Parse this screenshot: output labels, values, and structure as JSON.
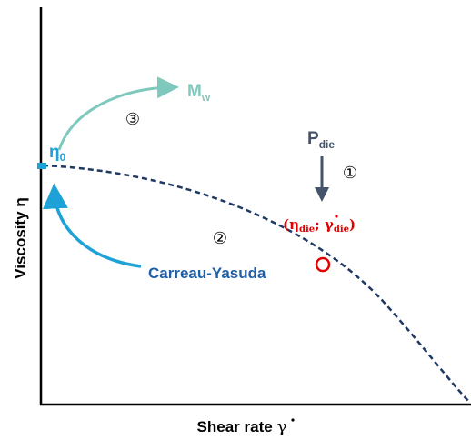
{
  "axes": {
    "x_label": "Shear rate",
    "x_symbol": "γ",
    "y_label": "Viscosity η"
  },
  "labels": {
    "eta": "η",
    "eta_sub": "0",
    "mw": "M",
    "mw_sub": "w",
    "pdie": "P",
    "pdie_sub": "die",
    "step1": "①",
    "step2": "②",
    "step3": "③",
    "carreau": "Carreau-Yasuda",
    "point_open": "(",
    "point_eta": "η",
    "point_eta_sub": "die",
    "point_sep": "; ",
    "point_gamma": "γ",
    "point_gamma_sub": "die",
    "point_close": ")"
  },
  "colors": {
    "curve": "#1f3864",
    "axis": "#000000",
    "eta0": "#1da1d6",
    "mw": "#7fc8bd",
    "pdie": "#44546a",
    "carreau_text": "#1f5fa8",
    "carreau_arrow": "#1da1d6",
    "point": "#e00000"
  }
}
